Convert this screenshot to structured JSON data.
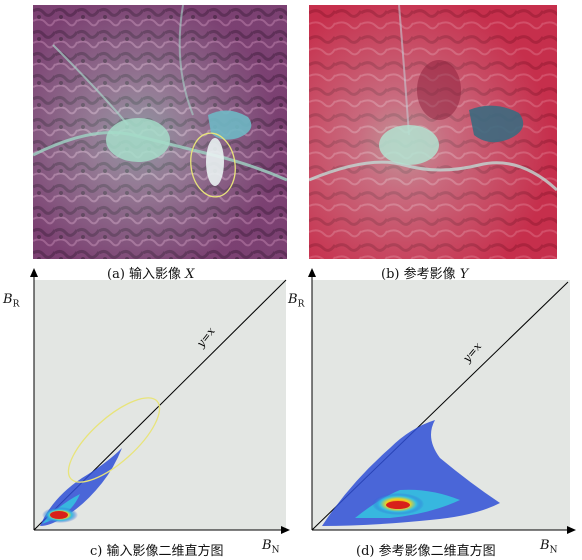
{
  "panel_a": {
    "caption_prefix": "(a) 输入影像",
    "caption_var": "X"
  },
  "panel_b": {
    "caption_prefix": "(b) 参考影像",
    "caption_var": "Y"
  },
  "panel_c": {
    "caption": "c) 输入影像二维直方图",
    "x_axis_symbol": "B",
    "x_axis_sub": "N",
    "y_axis_symbol": "B",
    "y_axis_sub": "R",
    "line_label": "y=x"
  },
  "panel_d": {
    "caption": "(d) 参考影像二维直方图",
    "x_axis_symbol": "B",
    "x_axis_sub": "N",
    "y_axis_symbol": "B",
    "y_axis_sub": "R",
    "line_label": "y=x"
  },
  "colors": {
    "plot_bg": "#e3e6e3",
    "density_low": "#2f4fd6",
    "density_mid": "#35c0e0",
    "density_high": "#f4d21e",
    "density_peak": "#d8201a",
    "ellipse": "#e8e47a"
  }
}
